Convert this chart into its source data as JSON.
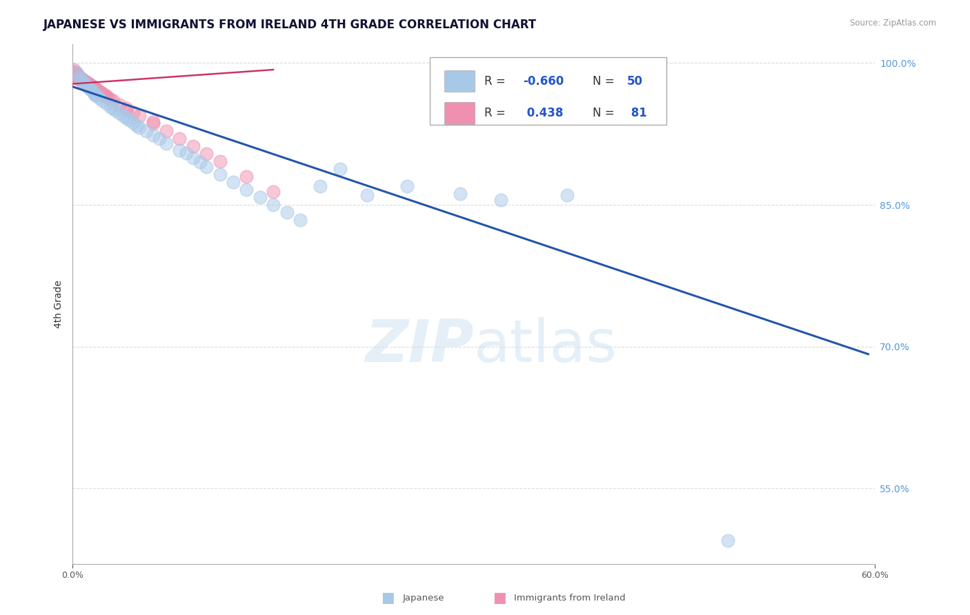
{
  "title": "JAPANESE VS IMMIGRANTS FROM IRELAND 4TH GRADE CORRELATION CHART",
  "source_text": "Source: ZipAtlas.com",
  "ylabel": "4th Grade",
  "xlim": [
    0.0,
    0.6
  ],
  "ylim": [
    0.47,
    1.02
  ],
  "yticks": [
    0.55,
    0.7,
    0.85,
    1.0
  ],
  "yticklabels": [
    "55.0%",
    "70.0%",
    "85.0%",
    "100.0%"
  ],
  "watermark": "ZIPatlas",
  "blue_color": "#a8c8e8",
  "pink_color": "#f090b0",
  "trendline_color": "#2255aa",
  "pink_trendline_color": "#cc3366",
  "background_color": "#ffffff",
  "title_color": "#111133",
  "grid_color": "#cccccc",
  "right_ytick_color": "#5599dd",
  "tick_fontsize": 9,
  "title_fontsize": 12,
  "blue_scatter_x": [
    0.003,
    0.005,
    0.007,
    0.008,
    0.009,
    0.01,
    0.011,
    0.012,
    0.013,
    0.015,
    0.016,
    0.017,
    0.018,
    0.02,
    0.022,
    0.025,
    0.028,
    0.03,
    0.032,
    0.035,
    0.038,
    0.04,
    0.042,
    0.045,
    0.048,
    0.05,
    0.055,
    0.06,
    0.065,
    0.07,
    0.08,
    0.085,
    0.09,
    0.095,
    0.1,
    0.11,
    0.12,
    0.13,
    0.14,
    0.15,
    0.16,
    0.17,
    0.185,
    0.2,
    0.22,
    0.25,
    0.29,
    0.32,
    0.37,
    0.49
  ],
  "blue_scatter_y": [
    0.99,
    0.985,
    0.982,
    0.98,
    0.978,
    0.976,
    0.975,
    0.974,
    0.972,
    0.97,
    0.968,
    0.966,
    0.965,
    0.963,
    0.96,
    0.957,
    0.954,
    0.952,
    0.95,
    0.947,
    0.944,
    0.942,
    0.94,
    0.937,
    0.934,
    0.932,
    0.928,
    0.924,
    0.92,
    0.915,
    0.908,
    0.905,
    0.9,
    0.895,
    0.89,
    0.882,
    0.874,
    0.866,
    0.858,
    0.85,
    0.842,
    0.834,
    0.87,
    0.888,
    0.86,
    0.87,
    0.862,
    0.855,
    0.86,
    0.495
  ],
  "pink_scatter_x": [
    0.001,
    0.001,
    0.001,
    0.002,
    0.002,
    0.002,
    0.003,
    0.003,
    0.003,
    0.004,
    0.004,
    0.004,
    0.005,
    0.005,
    0.005,
    0.006,
    0.006,
    0.006,
    0.007,
    0.007,
    0.007,
    0.008,
    0.008,
    0.008,
    0.009,
    0.009,
    0.009,
    0.01,
    0.01,
    0.01,
    0.011,
    0.011,
    0.011,
    0.012,
    0.012,
    0.012,
    0.013,
    0.013,
    0.013,
    0.014,
    0.014,
    0.014,
    0.015,
    0.015,
    0.015,
    0.016,
    0.016,
    0.017,
    0.017,
    0.018,
    0.018,
    0.019,
    0.02,
    0.021,
    0.022,
    0.023,
    0.024,
    0.025,
    0.026,
    0.028,
    0.03,
    0.035,
    0.04,
    0.045,
    0.05,
    0.06,
    0.07,
    0.08,
    0.09,
    0.1,
    0.11,
    0.13,
    0.15,
    0.04,
    0.06,
    0.02,
    0.01,
    0.005,
    0.007,
    0.003,
    0.35
  ],
  "pink_scatter_y": [
    0.993,
    0.991,
    0.989,
    0.99,
    0.988,
    0.987,
    0.989,
    0.987,
    0.986,
    0.987,
    0.986,
    0.984,
    0.985,
    0.984,
    0.983,
    0.984,
    0.983,
    0.982,
    0.983,
    0.982,
    0.981,
    0.982,
    0.981,
    0.98,
    0.981,
    0.98,
    0.979,
    0.98,
    0.979,
    0.978,
    0.979,
    0.978,
    0.977,
    0.978,
    0.977,
    0.976,
    0.977,
    0.976,
    0.975,
    0.976,
    0.975,
    0.974,
    0.975,
    0.974,
    0.973,
    0.974,
    0.973,
    0.973,
    0.972,
    0.972,
    0.971,
    0.971,
    0.97,
    0.969,
    0.968,
    0.967,
    0.966,
    0.965,
    0.964,
    0.962,
    0.96,
    0.956,
    0.952,
    0.948,
    0.944,
    0.936,
    0.928,
    0.92,
    0.912,
    0.904,
    0.896,
    0.88,
    0.864,
    0.95,
    0.938,
    0.968,
    0.978,
    0.984,
    0.981,
    0.988,
    0.996
  ],
  "trendline_x": [
    0.0,
    0.595
  ],
  "trendline_y": [
    0.975,
    0.692
  ],
  "pink_trend_x": [
    0.0,
    0.15
  ],
  "pink_trend_y": [
    0.978,
    0.993
  ]
}
